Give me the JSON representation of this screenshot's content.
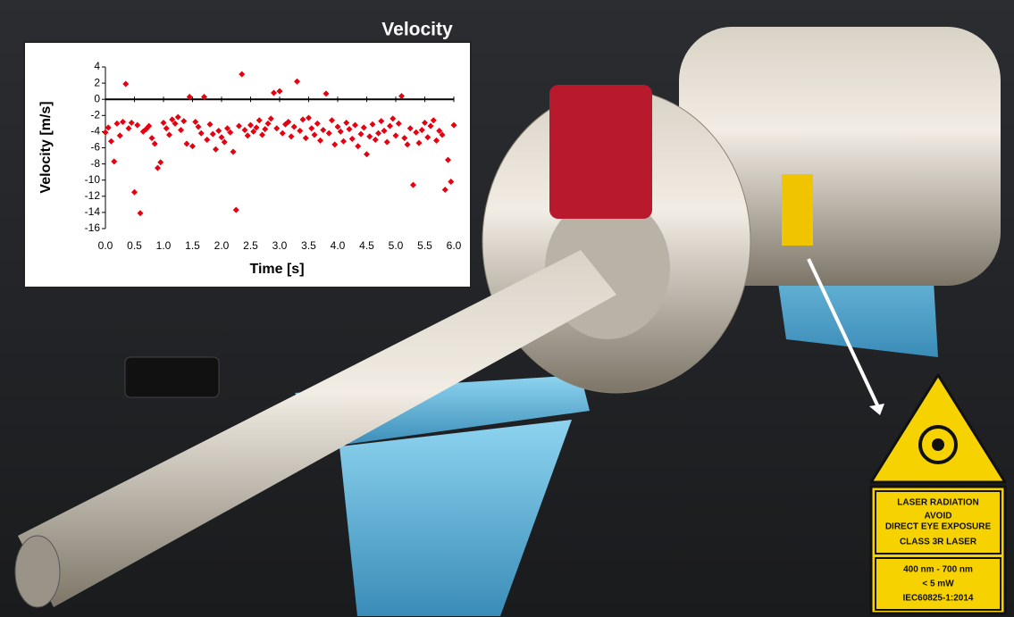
{
  "chart_data": {
    "type": "scatter",
    "title": "Velocity",
    "x_label": "Time [s]",
    "y_label": "Velocity  [m/s]",
    "series": [
      {
        "name": "Velocity",
        "color": "#e60010",
        "x": [
          0.0,
          0.05,
          0.1,
          0.15,
          0.2,
          0.25,
          0.3,
          0.35,
          0.4,
          0.45,
          0.5,
          0.55,
          0.6,
          0.65,
          0.7,
          0.75,
          0.8,
          0.85,
          0.9,
          0.95,
          1.0,
          1.05,
          1.1,
          1.15,
          1.2,
          1.25,
          1.3,
          1.35,
          1.4,
          1.45,
          1.5,
          1.55,
          1.6,
          1.65,
          1.7,
          1.75,
          1.8,
          1.85,
          1.9,
          1.95,
          2.0,
          2.05,
          2.1,
          2.15,
          2.2,
          2.25,
          2.3,
          2.35,
          2.4,
          2.45,
          2.5,
          2.55,
          2.6,
          2.65,
          2.7,
          2.75,
          2.8,
          2.85,
          2.9,
          2.95,
          3.0,
          3.05,
          3.1,
          3.15,
          3.2,
          3.25,
          3.3,
          3.35,
          3.4,
          3.45,
          3.5,
          3.55,
          3.6,
          3.65,
          3.7,
          3.75,
          3.8,
          3.85,
          3.9,
          3.95,
          4.0,
          4.05,
          4.1,
          4.15,
          4.2,
          4.25,
          4.3,
          4.35,
          4.4,
          4.45,
          4.5,
          4.55,
          4.6,
          4.65,
          4.7,
          4.75,
          4.8,
          4.85,
          4.9,
          4.95,
          5.0,
          5.05,
          5.1,
          5.15,
          5.2,
          5.25,
          5.3,
          5.35,
          5.4,
          5.45,
          5.5,
          5.55,
          5.6,
          5.65,
          5.7,
          5.75,
          5.8,
          5.85,
          5.9,
          5.95,
          6.0
        ],
        "values": [
          -4.1,
          -3.5,
          -5.2,
          -7.7,
          -3.0,
          -4.5,
          -2.8,
          1.9,
          -3.6,
          -2.9,
          -11.5,
          -3.2,
          -14.1,
          -4.0,
          -3.7,
          -3.3,
          -4.8,
          -5.5,
          -8.5,
          -7.8,
          -2.9,
          -3.6,
          -4.4,
          -2.5,
          -3.0,
          -2.2,
          -3.8,
          -2.7,
          -5.5,
          0.3,
          -5.8,
          -2.8,
          -3.4,
          -4.2,
          0.3,
          -5.0,
          -3.1,
          -4.3,
          -6.2,
          -3.9,
          -4.7,
          -5.3,
          -3.6,
          -4.1,
          -6.5,
          -13.7,
          -3.3,
          3.1,
          -3.8,
          -4.5,
          -3.2,
          -4.0,
          -3.5,
          -2.6,
          -4.4,
          -3.7,
          -3.0,
          -2.4,
          0.8,
          -3.6,
          1.0,
          -4.2,
          -3.1,
          -2.8,
          -4.6,
          -3.4,
          2.2,
          -3.9,
          -2.5,
          -4.8,
          -2.3,
          -3.6,
          -4.4,
          -3.0,
          -5.1,
          -3.8,
          0.7,
          -4.2,
          -2.6,
          -5.6,
          -3.4,
          -4.0,
          -5.2,
          -2.9,
          -3.7,
          -4.9,
          -3.2,
          -5.8,
          -4.3,
          -3.5,
          -6.8,
          -4.6,
          -3.1,
          -5.0,
          -4.2,
          -2.7,
          -3.9,
          -5.3,
          -3.3,
          -2.4,
          -4.5,
          -3.0,
          0.4,
          -4.8,
          -5.6,
          -3.6,
          -10.6,
          -4.1,
          -5.4,
          -3.8,
          -2.9,
          -4.7,
          -3.3,
          -2.6,
          -5.1,
          -3.9,
          -4.4,
          -11.2,
          -7.5,
          -10.2,
          -3.2
        ]
      }
    ],
    "xlim": [
      0,
      6
    ],
    "ylim": [
      -16,
      4
    ],
    "xticks": [
      {
        "value": 0,
        "label": "0.0"
      },
      0.5,
      {
        "value": 1,
        "label": "1.0"
      },
      1.5,
      {
        "value": 2,
        "label": "2.0"
      },
      2.5,
      {
        "value": 3,
        "label": "3.0"
      },
      3.5,
      {
        "value": 4,
        "label": "4.0"
      },
      4.5,
      {
        "value": 5,
        "label": "5.0"
      },
      5.5,
      {
        "value": 6,
        "label": "6.0"
      }
    ],
    "yticks": [
      -16,
      -14,
      -12,
      -10,
      -8,
      -6,
      -4,
      -2,
      0,
      2,
      4
    ],
    "grid": false
  },
  "warning_sign": {
    "lines": [
      "LASER RADIATION",
      "AVOID",
      "DIRECT EYE EXPOSURE",
      "CLASS 3R LASER",
      "400 nm - 700 nm",
      "< 5 mW",
      "IEC60825-1:2014"
    ]
  }
}
